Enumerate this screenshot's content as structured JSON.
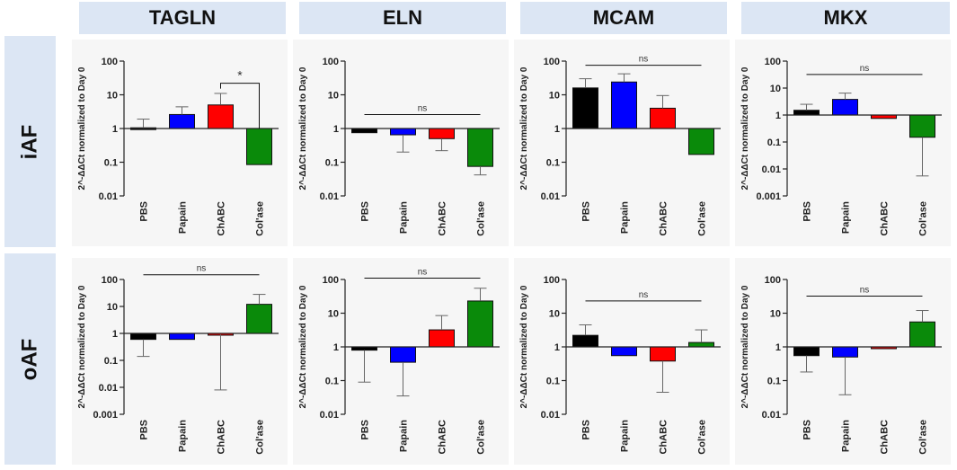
{
  "columns": [
    "TAGLN",
    "ELN",
    "MCAM",
    "MKX"
  ],
  "rows": [
    "iAF",
    "oAF"
  ],
  "colors": {
    "PBS": "#000000",
    "Papain": "#0000ff",
    "ChABC": "#ff0000",
    "Col'ase": "#0a8a0a",
    "header_bg": "#dce6f4"
  },
  "chart_data": [
    {
      "type": "bar",
      "gene": "TAGLN",
      "group": "iAF",
      "title": "TAGLN",
      "yscale": "log",
      "baseline": 1,
      "ylabel": "2^-ΔΔCt normalized to Day 0",
      "ylim": [
        0.01,
        100
      ],
      "yticks": [
        100,
        10,
        1,
        0.1,
        0.01
      ],
      "ytick_labels": [
        "100",
        "10",
        "1",
        "0.1",
        "0.01"
      ],
      "categories": [
        "PBS",
        "Papain",
        "ChABC",
        "Col'ase"
      ],
      "values": [
        1.05,
        2.6,
        5.0,
        0.085
      ],
      "error_upper": [
        1.9,
        4.4,
        11.0,
        0.085
      ],
      "annotation": {
        "type": "bracket",
        "text": "*",
        "from": 2,
        "to": 3,
        "y": 22
      }
    },
    {
      "type": "bar",
      "gene": "ELN",
      "group": "iAF",
      "title": "ELN",
      "yscale": "log",
      "baseline": 1,
      "ylabel": "2^-ΔΔCt normalized to Day 0",
      "ylim": [
        0.01,
        100
      ],
      "yticks": [
        100,
        10,
        1,
        0.1,
        0.01
      ],
      "ytick_labels": [
        "100",
        "10",
        "1",
        "0.1",
        "0.01"
      ],
      "categories": [
        "PBS",
        "Papain",
        "ChABC",
        "Col'ase"
      ],
      "values": [
        0.75,
        0.65,
        0.5,
        0.075
      ],
      "error_lower": [
        0.75,
        0.2,
        0.22,
        0.042
      ],
      "annotation": {
        "type": "line",
        "text": "ns",
        "from": 0,
        "to": 3,
        "y": 2.6
      }
    },
    {
      "type": "bar",
      "gene": "MCAM",
      "group": "iAF",
      "title": "MCAM",
      "yscale": "log",
      "baseline": 1,
      "ylabel": "2^-ΔΔCt normalized to Day 0",
      "ylim": [
        0.01,
        100
      ],
      "yticks": [
        100,
        10,
        1,
        0.1,
        0.01
      ],
      "ytick_labels": [
        "100",
        "10",
        "1",
        "0.1",
        "0.01"
      ],
      "categories": [
        "PBS",
        "Papain",
        "ChABC",
        "Col'ase"
      ],
      "values": [
        16,
        24,
        4,
        0.17
      ],
      "error_upper": [
        30,
        42,
        9.5,
        0.17
      ],
      "annotation": {
        "type": "line",
        "text": "ns",
        "from": 0,
        "to": 3,
        "y": 75
      }
    },
    {
      "type": "bar",
      "gene": "MKX",
      "group": "iAF",
      "title": "MKX",
      "yscale": "log",
      "baseline": 1,
      "ylabel": "2^-ΔΔCt normalized to Day 0",
      "ylim": [
        0.001,
        100
      ],
      "yticks": [
        100,
        10,
        1,
        0.1,
        0.01,
        0.001
      ],
      "ytick_labels": [
        "100",
        "10",
        "1",
        "0.1",
        "0.01",
        "0.001"
      ],
      "categories": [
        "PBS",
        "Papain",
        "ChABC",
        "Col'ase"
      ],
      "values": [
        1.5,
        3.8,
        0.75,
        0.15
      ],
      "error_upper": [
        2.5,
        6.5,
        0.75,
        0.15
      ],
      "error_lower": [
        1.5,
        3.8,
        0.75,
        0.0055
      ],
      "annotation": {
        "type": "line",
        "text": "ns",
        "from": 0,
        "to": 3,
        "y": 32
      }
    },
    {
      "type": "bar",
      "gene": "TAGLN",
      "group": "oAF",
      "title": "TAGLN",
      "yscale": "log",
      "baseline": 1,
      "ylabel": "2^-ΔΔCt normalized to Day 0",
      "ylim": [
        0.001,
        100
      ],
      "yticks": [
        100,
        10,
        1,
        0.1,
        0.01,
        0.001
      ],
      "ytick_labels": [
        "100",
        "10",
        "1",
        "0.1",
        "0.01",
        "0.001"
      ],
      "categories": [
        "PBS",
        "Papain",
        "ChABC",
        "Col'ase"
      ],
      "values": [
        0.6,
        0.6,
        0.92,
        12
      ],
      "error_upper": [
        0.6,
        0.6,
        0.92,
        28
      ],
      "error_lower": [
        0.14,
        0.6,
        0.008,
        12
      ],
      "annotation": {
        "type": "line",
        "text": "ns",
        "from": 0,
        "to": 3,
        "y": 150
      }
    },
    {
      "type": "bar",
      "gene": "ELN",
      "group": "oAF",
      "title": "ELN",
      "yscale": "log",
      "baseline": 1,
      "ylabel": "2^-ΔΔCt normalized to Day 0",
      "ylim": [
        0.01,
        100
      ],
      "yticks": [
        100,
        10,
        1,
        0.1,
        0.01
      ],
      "ytick_labels": [
        "100",
        "10",
        "1",
        "0.1",
        "0.01"
      ],
      "categories": [
        "PBS",
        "Papain",
        "ChABC",
        "Col'ase"
      ],
      "values": [
        0.8,
        0.35,
        3.2,
        23
      ],
      "error_upper": [
        0.8,
        0.35,
        8.5,
        55
      ],
      "error_lower": [
        0.09,
        0.035,
        3.2,
        23
      ],
      "annotation": {
        "type": "line",
        "text": "ns",
        "from": 0,
        "to": 3,
        "y": 110
      }
    },
    {
      "type": "bar",
      "gene": "MCAM",
      "group": "oAF",
      "title": "MCAM",
      "yscale": "log",
      "baseline": 1,
      "ylabel": "2^-ΔΔCt normalized to Day 0",
      "ylim": [
        0.01,
        100
      ],
      "yticks": [
        100,
        10,
        1,
        0.1,
        0.01
      ],
      "ytick_labels": [
        "100",
        "10",
        "1",
        "0.1",
        "0.01"
      ],
      "categories": [
        "PBS",
        "Papain",
        "ChABC",
        "Col'ase"
      ],
      "values": [
        2.2,
        0.55,
        0.38,
        1.35
      ],
      "error_upper": [
        4.5,
        0.55,
        0.38,
        3.2
      ],
      "error_lower": [
        2.2,
        0.55,
        0.045,
        1.35
      ],
      "annotation": {
        "type": "line",
        "text": "ns",
        "from": 0,
        "to": 3,
        "y": 23
      }
    },
    {
      "type": "bar",
      "gene": "MKX",
      "group": "oAF",
      "title": "MKX",
      "yscale": "log",
      "baseline": 1,
      "ylabel": "2^-ΔΔCt normalized to Day 0",
      "ylim": [
        0.01,
        100
      ],
      "yticks": [
        100,
        10,
        1,
        0.1,
        0.01
      ],
      "ytick_labels": [
        "100",
        "10",
        "1",
        "0.1",
        "0.01"
      ],
      "categories": [
        "PBS",
        "Papain",
        "ChABC",
        "Col'ase"
      ],
      "values": [
        0.55,
        0.5,
        0.95,
        5.5
      ],
      "error_upper": [
        0.55,
        0.5,
        0.95,
        12
      ],
      "error_lower": [
        0.18,
        0.038,
        0.95,
        5.5
      ],
      "annotation": {
        "type": "line",
        "text": "ns",
        "from": 0,
        "to": 3,
        "y": 32
      }
    }
  ]
}
